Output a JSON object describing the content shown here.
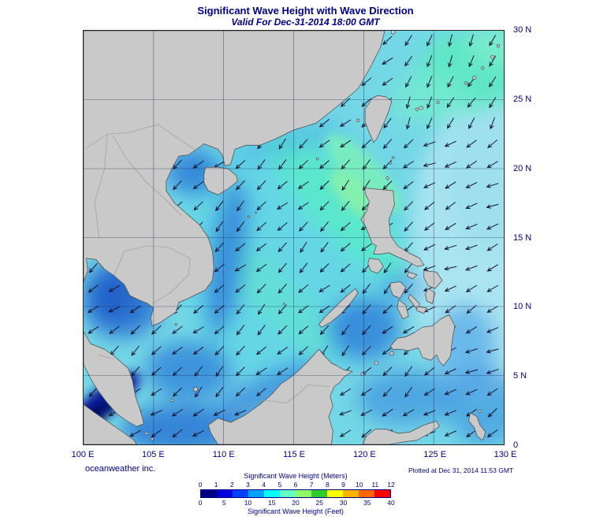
{
  "header": {
    "title": "Significant Wave Height with Wave Direction",
    "subtitle": "Valid For Dec-31-2014 18:00 GMT"
  },
  "map": {
    "x_ticks": [
      "100 E",
      "105 E",
      "110 E",
      "115 E",
      "120 E",
      "125 E",
      "130 E"
    ],
    "y_ticks": [
      "30 N",
      "25 N",
      "20 N",
      "15 N",
      "10 N",
      "5 N",
      "0"
    ]
  },
  "footer": {
    "credit": "oceanweather inc.",
    "plotted": "Plotted at Dec 31, 2014 11:53 GMT"
  },
  "legend": {
    "meters_label": "Significant Wave Height (Meters)",
    "feet_label": "Significant Wave Height (Feet)",
    "meters_ticks": [
      "0",
      "1",
      "2",
      "3",
      "4",
      "5",
      "6",
      "7",
      "8",
      "9",
      "10",
      "11",
      "12"
    ],
    "feet_ticks": [
      "0",
      "5",
      "10",
      "15",
      "20",
      "25",
      "30",
      "35",
      "40"
    ],
    "colors": [
      "#000080",
      "#0000d9",
      "#0040ff",
      "#00a0ff",
      "#00ffff",
      "#66ffc2",
      "#8cff66",
      "#2ecc2e",
      "#ffff00",
      "#ffb300",
      "#ff6600",
      "#ff0000"
    ]
  },
  "chart_data": {
    "type": "heatmap",
    "title": "Significant Wave Height with Wave Direction",
    "valid_time": "Dec-31-2014 18:00 GMT",
    "plotted_at": "Dec 31, 2014 11:53 GMT",
    "x_ticks_deg_e": [
      100,
      105,
      110,
      115,
      120,
      125,
      130
    ],
    "y_ticks_deg_n": [
      30,
      25,
      20,
      15,
      10,
      5,
      0
    ],
    "colorbar": {
      "meters": [
        0,
        1,
        2,
        3,
        4,
        5,
        6,
        7,
        8,
        9,
        10,
        11,
        12
      ],
      "feet": [
        0,
        5,
        10,
        15,
        20,
        25,
        30,
        35,
        40
      ],
      "colors": [
        "#000080",
        "#0000d9",
        "#0040ff",
        "#00a0ff",
        "#00ffff",
        "#66ffc2",
        "#8cff66",
        "#2ecc2e",
        "#ffff00",
        "#ffb300",
        "#ff6600",
        "#ff0000"
      ]
    },
    "field_estimates_m": {
      "open_south_china_sea": 3,
      "luzon_strait_streak": 5,
      "northeast_of_taiwan": 4,
      "pacific_east_of_philippines": 2.5,
      "gulf_of_tonkin": 1.5,
      "gulf_of_thailand": 1.5,
      "sulu_celebes_seas": 2,
      "malacca_strait": 0.5
    },
    "dominant_wave_direction": "toward southwest (arrows), more westward east of the Philippines, more southward northeast of Taiwan"
  }
}
